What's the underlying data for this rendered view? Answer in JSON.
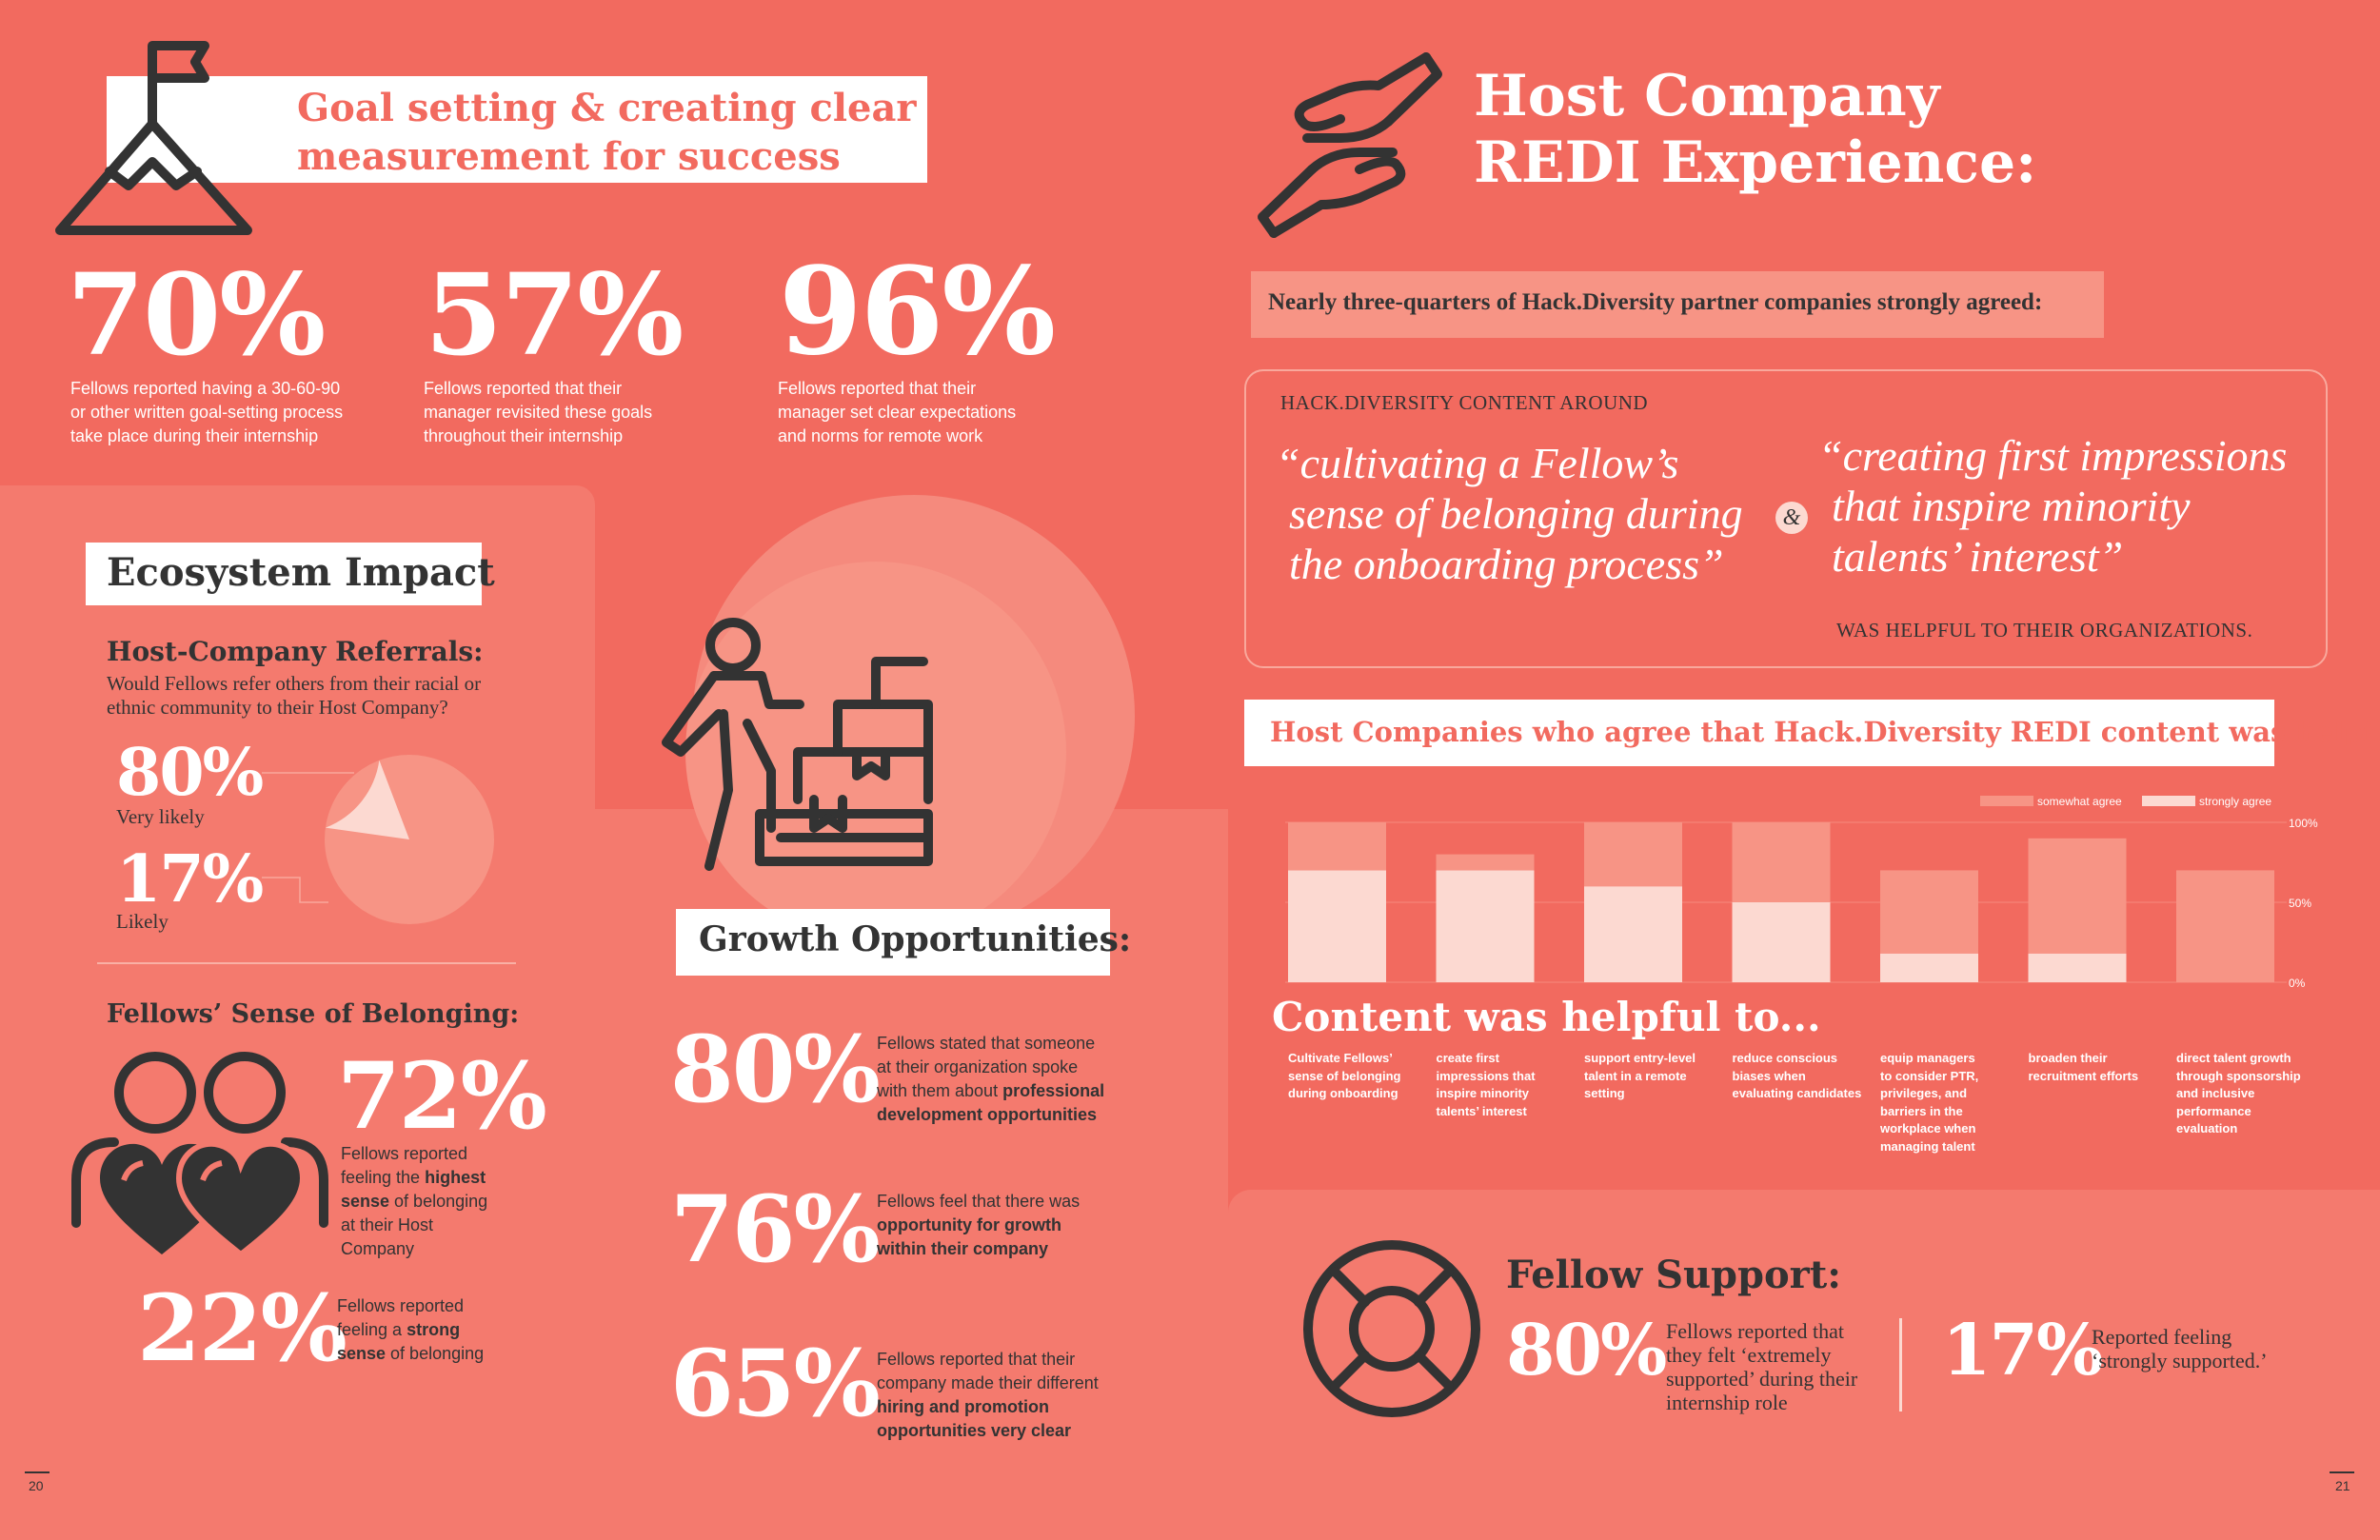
{
  "goal": {
    "title_line1": "Goal setting & creating clear",
    "title_line2": "measurement for success",
    "stats": [
      {
        "value": "70%",
        "desc1": "Fellows reported having a 30-60-90",
        "desc2": "or other written goal-setting process",
        "desc3": "take place during their internship"
      },
      {
        "value": "57%",
        "desc1": "Fellows reported that their",
        "desc2": "manager revisited these goals",
        "desc3": "throughout their internship"
      },
      {
        "value": "96%",
        "desc1": "Fellows reported that their",
        "desc2": "manager set clear expectations",
        "desc3": "and norms for remote work"
      }
    ]
  },
  "ecosystem": {
    "title": "Ecosystem Impact",
    "referrals_heading": "Host-Company Referrals:",
    "referrals_q1": "Would Fellows refer others from their racial or",
    "referrals_q2": "ethnic community to their Host Company?",
    "very_likely_value": "80%",
    "very_likely_label": "Very likely",
    "likely_value": "17%",
    "likely_label": "Likely",
    "pie": {
      "very_likely": 80,
      "likely": 17
    },
    "belonging_heading": "Fellows’ Sense of Belonging:",
    "highest_value": "72%",
    "highest_t1": "Fellows reported",
    "highest_t2": "feeling the ",
    "highest_b1": "highest",
    "highest_b2": "sense",
    "highest_t3": " of belonging",
    "highest_t4": "at their Host",
    "highest_t5": "Company",
    "strong_value": "22%",
    "strong_t1": "Fellows reported",
    "strong_t2": "feeling a ",
    "strong_b1": "strong",
    "strong_b2": "sense",
    "strong_t3": " of belonging"
  },
  "growth": {
    "title": "Growth Opportunities:",
    "s1_value": "80%",
    "s1_t1": "Fellows stated that someone",
    "s1_t2": "at their organization spoke",
    "s1_t3": "with them about ",
    "s1_b1": "professional",
    "s1_b2": "development opportunities",
    "s2_value": "76%",
    "s2_t1": "Fellows feel that there was",
    "s2_b1": "opportunity for growth",
    "s2_b2": "within their company",
    "s3_value": "65%",
    "s3_t1": "Fellows reported that their",
    "s3_t2": "company made their different",
    "s3_b1": "hiring and promotion",
    "s3_b2": "opportunities very clear"
  },
  "host": {
    "title_line1": "Host Company",
    "title_line2": "REDI Experience:",
    "agreed_banner": "Nearly three-quarters of Hack.Diversity partner companies strongly agreed:",
    "content_around": "HACK.DIVERSITY CONTENT AROUND",
    "quote1_l1": "“cultivating a Fellow’s",
    "quote1_l2": "sense of belonging during",
    "quote1_l3": "the onboarding process”",
    "ampersand": "&",
    "quote2_l1": "“creating first impressions",
    "quote2_l2": "that inspire minority",
    "quote2_l3": "talents’ interest”",
    "helpful": "WAS HELPFUL TO THEIR ORGANIZATIONS."
  },
  "chart_data": {
    "type": "bar",
    "title": "Host Companies who agree that Hack.Diversity REDI content was helpful",
    "legend": [
      "somewhat agree",
      "strongly agree"
    ],
    "ticks": [
      "100%",
      "50%",
      "0%"
    ],
    "ylim": [
      0,
      100
    ],
    "subtitle": "Content was helpful to...",
    "categories": [
      [
        "Cultivate Fellows’",
        "sense of belonging",
        "during onboarding"
      ],
      [
        "create first",
        "impressions that",
        "inspire minority",
        "talents’ interest"
      ],
      [
        "support entry-level",
        "talent in a remote",
        "setting"
      ],
      [
        "reduce conscious",
        "biases when",
        "evaluating candidates"
      ],
      [
        "equip managers",
        "to consider PTR,",
        "privileges, and",
        "barriers in the",
        "workplace when",
        "managing talent"
      ],
      [
        "broaden their",
        "recruitment efforts"
      ],
      [
        "direct talent growth",
        "through sponsorship",
        "and inclusive",
        "performance",
        "evaluation"
      ]
    ],
    "series": [
      {
        "name": "strongly agree",
        "values": [
          70,
          70,
          60,
          50,
          18,
          18,
          0
        ]
      },
      {
        "name": "somewhat agree",
        "values": [
          30,
          10,
          40,
          50,
          52,
          72,
          70
        ]
      }
    ],
    "colors": {
      "strongly": "#fcd9d1",
      "somewhat": "#f79485"
    }
  },
  "support": {
    "title": "Fellow Support:",
    "s1_value": "80%",
    "s1_l1": "Fellows reported that",
    "s1_l2": "they felt ‘extremely",
    "s1_l3": "supported’ during their",
    "s1_l4": "internship role",
    "s2_value": "17%",
    "s2_l1": "Reported feeling",
    "s2_l2": "‘strongly supported.’"
  },
  "pages": {
    "left": "20",
    "right": "21"
  }
}
